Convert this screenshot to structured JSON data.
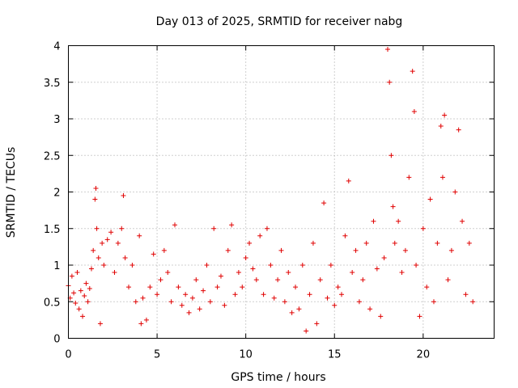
{
  "chart_data": {
    "type": "scatter",
    "title": "Day 013 of 2025, SRMTID for receiver nabg",
    "xlabel": "GPS time / hours",
    "ylabel": "SRMTID / TECUs",
    "xlim": [
      0,
      24
    ],
    "ylim": [
      0,
      4
    ],
    "xticks": [
      0,
      5,
      10,
      15,
      20
    ],
    "xtick_labels": [
      "0",
      "5",
      "10",
      "15",
      "20"
    ],
    "yticks": [
      0,
      0.5,
      1,
      1.5,
      2,
      2.5,
      3,
      3.5,
      4
    ],
    "ytick_labels": [
      "0",
      "0.5",
      "1",
      "1.5",
      "2",
      "2.5",
      "3",
      "3.5",
      "4"
    ],
    "grid": true,
    "marker": "+",
    "marker_color": "#e00000",
    "series": [
      {
        "name": "SRMTID",
        "points": [
          [
            0.0,
            0.72
          ],
          [
            0.1,
            0.55
          ],
          [
            0.2,
            0.85
          ],
          [
            0.3,
            0.62
          ],
          [
            0.4,
            0.48
          ],
          [
            0.5,
            0.9
          ],
          [
            0.6,
            0.4
          ],
          [
            0.7,
            0.65
          ],
          [
            0.8,
            0.3
          ],
          [
            0.9,
            0.58
          ],
          [
            1.0,
            0.75
          ],
          [
            1.1,
            0.5
          ],
          [
            1.2,
            0.68
          ],
          [
            1.3,
            0.95
          ],
          [
            1.4,
            1.2
          ],
          [
            1.5,
            1.9
          ],
          [
            1.55,
            2.05
          ],
          [
            1.6,
            1.5
          ],
          [
            1.7,
            1.1
          ],
          [
            1.8,
            0.2
          ],
          [
            1.9,
            1.3
          ],
          [
            2.0,
            1.0
          ],
          [
            2.2,
            1.35
          ],
          [
            2.4,
            1.45
          ],
          [
            2.6,
            0.9
          ],
          [
            2.8,
            1.3
          ],
          [
            3.0,
            1.5
          ],
          [
            3.1,
            1.95
          ],
          [
            3.2,
            1.1
          ],
          [
            3.4,
            0.7
          ],
          [
            3.6,
            1.0
          ],
          [
            3.8,
            0.5
          ],
          [
            4.0,
            1.4
          ],
          [
            4.1,
            0.2
          ],
          [
            4.2,
            0.55
          ],
          [
            4.4,
            0.25
          ],
          [
            4.6,
            0.7
          ],
          [
            4.8,
            1.15
          ],
          [
            5.0,
            0.6
          ],
          [
            5.2,
            0.8
          ],
          [
            5.4,
            1.2
          ],
          [
            5.6,
            0.9
          ],
          [
            5.8,
            0.5
          ],
          [
            6.0,
            1.55
          ],
          [
            6.2,
            0.7
          ],
          [
            6.4,
            0.45
          ],
          [
            6.6,
            0.6
          ],
          [
            6.8,
            0.35
          ],
          [
            7.0,
            0.55
          ],
          [
            7.2,
            0.8
          ],
          [
            7.4,
            0.4
          ],
          [
            7.6,
            0.65
          ],
          [
            7.8,
            1.0
          ],
          [
            8.0,
            0.5
          ],
          [
            8.2,
            1.5
          ],
          [
            8.4,
            0.7
          ],
          [
            8.6,
            0.85
          ],
          [
            8.8,
            0.45
          ],
          [
            9.0,
            1.2
          ],
          [
            9.2,
            1.55
          ],
          [
            9.4,
            0.6
          ],
          [
            9.6,
            0.9
          ],
          [
            9.8,
            0.7
          ],
          [
            10.0,
            1.1
          ],
          [
            10.2,
            1.3
          ],
          [
            10.4,
            0.95
          ],
          [
            10.6,
            0.8
          ],
          [
            10.8,
            1.4
          ],
          [
            11.0,
            0.6
          ],
          [
            11.2,
            1.5
          ],
          [
            11.4,
            1.0
          ],
          [
            11.6,
            0.55
          ],
          [
            11.8,
            0.8
          ],
          [
            12.0,
            1.2
          ],
          [
            12.2,
            0.5
          ],
          [
            12.4,
            0.9
          ],
          [
            12.6,
            0.35
          ],
          [
            12.8,
            0.7
          ],
          [
            13.0,
            0.4
          ],
          [
            13.2,
            1.0
          ],
          [
            13.4,
            0.1
          ],
          [
            13.6,
            0.6
          ],
          [
            13.8,
            1.3
          ],
          [
            14.0,
            0.2
          ],
          [
            14.2,
            0.8
          ],
          [
            14.4,
            1.85
          ],
          [
            14.6,
            0.55
          ],
          [
            14.8,
            1.0
          ],
          [
            15.0,
            0.45
          ],
          [
            15.2,
            0.7
          ],
          [
            15.4,
            0.6
          ],
          [
            15.6,
            1.4
          ],
          [
            15.8,
            2.15
          ],
          [
            16.0,
            0.9
          ],
          [
            16.2,
            1.2
          ],
          [
            16.4,
            0.5
          ],
          [
            16.6,
            0.8
          ],
          [
            16.8,
            1.3
          ],
          [
            17.0,
            0.4
          ],
          [
            17.2,
            1.6
          ],
          [
            17.4,
            0.95
          ],
          [
            17.6,
            0.3
          ],
          [
            17.8,
            1.1
          ],
          [
            18.0,
            3.95
          ],
          [
            18.1,
            3.5
          ],
          [
            18.2,
            2.5
          ],
          [
            18.3,
            1.8
          ],
          [
            18.4,
            1.3
          ],
          [
            18.6,
            1.6
          ],
          [
            18.8,
            0.9
          ],
          [
            19.0,
            1.2
          ],
          [
            19.2,
            2.2
          ],
          [
            19.4,
            3.65
          ],
          [
            19.5,
            3.1
          ],
          [
            19.6,
            1.0
          ],
          [
            19.8,
            0.3
          ],
          [
            20.0,
            1.5
          ],
          [
            20.2,
            0.7
          ],
          [
            20.4,
            1.9
          ],
          [
            20.6,
            0.5
          ],
          [
            20.8,
            1.3
          ],
          [
            21.0,
            2.9
          ],
          [
            21.1,
            2.2
          ],
          [
            21.2,
            3.05
          ],
          [
            21.4,
            0.8
          ],
          [
            21.6,
            1.2
          ],
          [
            21.8,
            2.0
          ],
          [
            22.0,
            2.85
          ],
          [
            22.2,
            1.6
          ],
          [
            22.4,
            0.6
          ],
          [
            22.6,
            1.3
          ],
          [
            22.8,
            0.5
          ]
        ]
      }
    ]
  }
}
